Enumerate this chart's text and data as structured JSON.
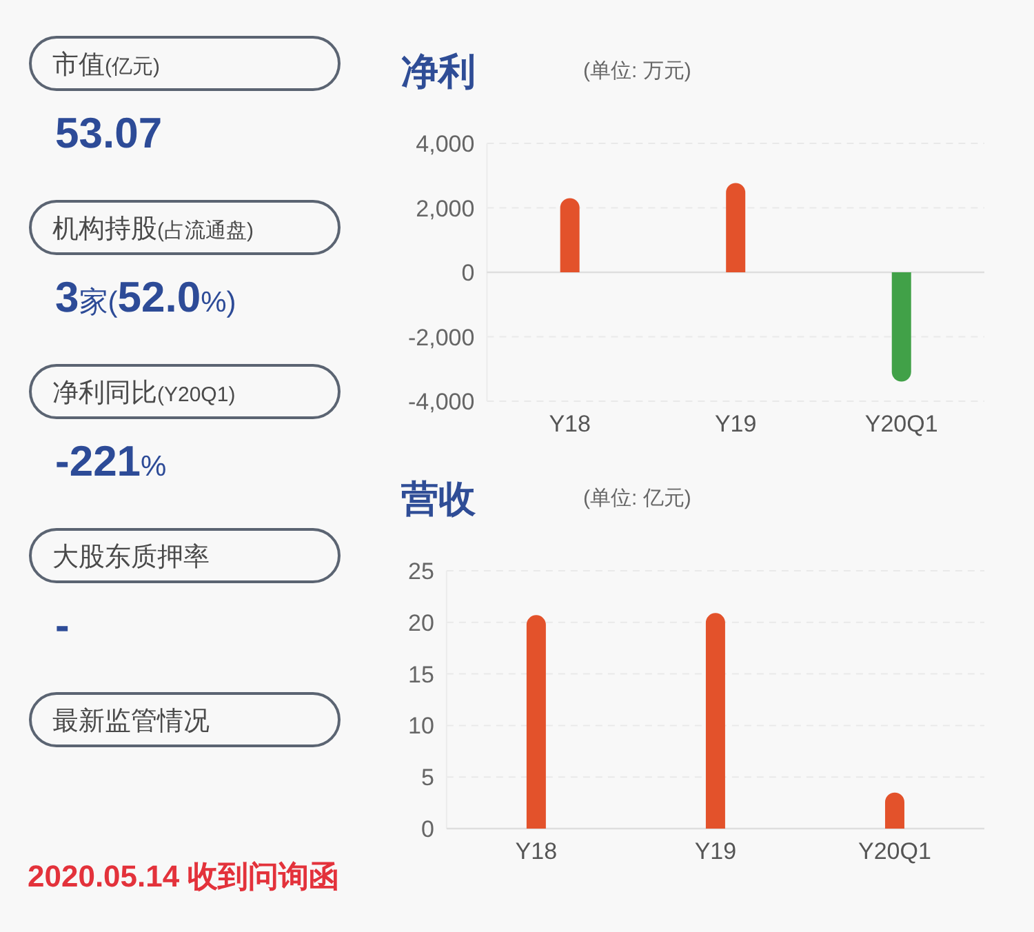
{
  "chart_data": [
    {
      "type": "other",
      "annotations": [
        "市值(亿元)",
        "53.07",
        "机构持股(占流通盘)",
        "3家(52.0%)",
        "净利同比(Y20Q1)",
        "-221%",
        "大股东质押率",
        "-",
        "最新监管情况",
        "2020.05.14 收到问询函"
      ]
    },
    {
      "type": "bar",
      "title": "净利",
      "subtitle": "(单位: 万元)",
      "categories": [
        "Y18",
        "Y19",
        "Y20Q1"
      ],
      "values": [
        2300,
        2770,
        -3390
      ],
      "colors": [
        "#e3522b",
        "#e3522b",
        "#41a148"
      ],
      "ylim": [
        -4000,
        4000
      ],
      "yticks": [
        {
          "value": -4000,
          "label": "-4,000"
        },
        {
          "value": -2000,
          "label": "-2,000"
        },
        0,
        {
          "value": 2000,
          "label": "2,000"
        },
        {
          "value": 4000,
          "label": "4,000"
        }
      ],
      "grid": "y"
    },
    {
      "type": "bar",
      "title": "营收",
      "subtitle": "(单位: 亿元)",
      "categories": [
        "Y18",
        "Y19",
        "Y20Q1"
      ],
      "values": [
        20.7,
        20.9,
        3.5
      ],
      "colors": [
        "#e3522b",
        "#e3522b",
        "#e3522b"
      ],
      "ylim": [
        0,
        25
      ],
      "yticks": [
        0,
        5,
        10,
        15,
        20,
        25
      ],
      "grid": "y"
    }
  ]
}
